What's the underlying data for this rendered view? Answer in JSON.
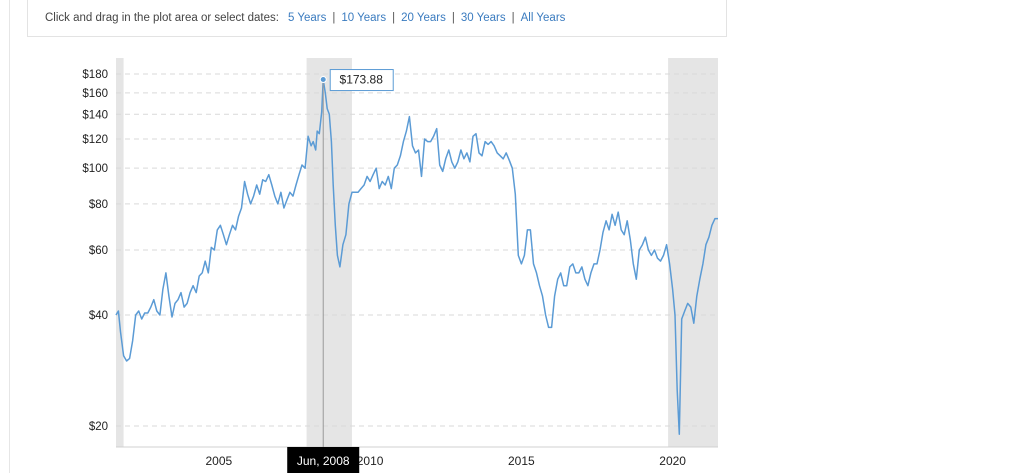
{
  "toolbar": {
    "prompt": "Click and drag in the plot area or select dates:",
    "ranges": [
      "5 Years",
      "10 Years",
      "20 Years",
      "30 Years",
      "All Years"
    ],
    "separator": "|"
  },
  "tooltip": {
    "value_label": "$173.88",
    "date_label": "Jun, 2008"
  },
  "colors": {
    "line": "#5b9bd5",
    "recession": "#e5e5e5",
    "grid": "#d9d9d9",
    "date_bg": "#000000"
  },
  "chart_data": {
    "type": "line",
    "y_scale": "log",
    "ylim": [
      20,
      180
    ],
    "xlim": [
      2001.6,
      2021.5
    ],
    "y_ticks": [
      {
        "v": 180,
        "label": "$180"
      },
      {
        "v": 160,
        "label": "$160"
      },
      {
        "v": 140,
        "label": "$140"
      },
      {
        "v": 120,
        "label": "$120"
      },
      {
        "v": 100,
        "label": "$100"
      },
      {
        "v": 80,
        "label": "$80"
      },
      {
        "v": 60,
        "label": "$60"
      },
      {
        "v": 40,
        "label": "$40"
      },
      {
        "v": 20,
        "label": "$20"
      }
    ],
    "x_ticks": [
      {
        "v": 2005,
        "label": "2005"
      },
      {
        "v": 2010,
        "label": "2010"
      },
      {
        "v": 2015,
        "label": "2015"
      },
      {
        "v": 2020,
        "label": "2020"
      }
    ],
    "highlight": {
      "x": 2008.45,
      "y": 173.88
    },
    "recessions": [
      [
        2001.6,
        2001.85
      ],
      [
        2007.9,
        2009.4
      ],
      [
        2019.85,
        2021.5
      ]
    ],
    "points": [
      [
        2001.6,
        40
      ],
      [
        2001.68,
        41
      ],
      [
        2001.75,
        36
      ],
      [
        2001.85,
        31
      ],
      [
        2001.95,
        30
      ],
      [
        2002.05,
        30.5
      ],
      [
        2002.15,
        34
      ],
      [
        2002.25,
        40
      ],
      [
        2002.35,
        41
      ],
      [
        2002.45,
        39
      ],
      [
        2002.55,
        40.5
      ],
      [
        2002.65,
        40.5
      ],
      [
        2002.75,
        42
      ],
      [
        2002.85,
        44
      ],
      [
        2002.95,
        41
      ],
      [
        2003.05,
        40
      ],
      [
        2003.15,
        47
      ],
      [
        2003.25,
        52
      ],
      [
        2003.35,
        45
      ],
      [
        2003.45,
        39.5
      ],
      [
        2003.55,
        43
      ],
      [
        2003.65,
        44
      ],
      [
        2003.75,
        46
      ],
      [
        2003.85,
        42
      ],
      [
        2003.95,
        43
      ],
      [
        2004.05,
        46
      ],
      [
        2004.15,
        48
      ],
      [
        2004.25,
        46
      ],
      [
        2004.35,
        51
      ],
      [
        2004.45,
        52
      ],
      [
        2004.55,
        56
      ],
      [
        2004.65,
        52
      ],
      [
        2004.75,
        61
      ],
      [
        2004.85,
        60
      ],
      [
        2004.95,
        68
      ],
      [
        2005.05,
        70
      ],
      [
        2005.15,
        66
      ],
      [
        2005.25,
        62
      ],
      [
        2005.35,
        66
      ],
      [
        2005.45,
        70
      ],
      [
        2005.55,
        68
      ],
      [
        2005.65,
        74
      ],
      [
        2005.75,
        78
      ],
      [
        2005.85,
        92
      ],
      [
        2005.95,
        85
      ],
      [
        2006.05,
        80
      ],
      [
        2006.15,
        84
      ],
      [
        2006.25,
        90
      ],
      [
        2006.35,
        85
      ],
      [
        2006.45,
        93
      ],
      [
        2006.55,
        92
      ],
      [
        2006.65,
        96
      ],
      [
        2006.75,
        90
      ],
      [
        2006.85,
        84
      ],
      [
        2006.95,
        80
      ],
      [
        2007.05,
        86
      ],
      [
        2007.15,
        78
      ],
      [
        2007.25,
        82
      ],
      [
        2007.35,
        86
      ],
      [
        2007.45,
        84
      ],
      [
        2007.55,
        90
      ],
      [
        2007.65,
        96
      ],
      [
        2007.75,
        102
      ],
      [
        2007.85,
        100
      ],
      [
        2007.95,
        122
      ],
      [
        2008.05,
        115
      ],
      [
        2008.12,
        118
      ],
      [
        2008.2,
        112
      ],
      [
        2008.25,
        126
      ],
      [
        2008.32,
        124
      ],
      [
        2008.4,
        142
      ],
      [
        2008.45,
        173.88
      ],
      [
        2008.52,
        160
      ],
      [
        2008.58,
        145
      ],
      [
        2008.65,
        140
      ],
      [
        2008.72,
        118
      ],
      [
        2008.78,
        90
      ],
      [
        2008.85,
        70
      ],
      [
        2008.92,
        58
      ],
      [
        2009.0,
        54
      ],
      [
        2009.1,
        62
      ],
      [
        2009.2,
        66
      ],
      [
        2009.3,
        80
      ],
      [
        2009.4,
        86
      ],
      [
        2009.5,
        86
      ],
      [
        2009.6,
        86
      ],
      [
        2009.7,
        88
      ],
      [
        2009.8,
        90
      ],
      [
        2009.9,
        95
      ],
      [
        2010.0,
        92
      ],
      [
        2010.1,
        96
      ],
      [
        2010.2,
        100
      ],
      [
        2010.3,
        88
      ],
      [
        2010.4,
        92
      ],
      [
        2010.5,
        90
      ],
      [
        2010.6,
        95
      ],
      [
        2010.7,
        88
      ],
      [
        2010.8,
        100
      ],
      [
        2010.9,
        102
      ],
      [
        2011.0,
        108
      ],
      [
        2011.1,
        118
      ],
      [
        2011.2,
        126
      ],
      [
        2011.3,
        138
      ],
      [
        2011.4,
        115
      ],
      [
        2011.5,
        110
      ],
      [
        2011.6,
        112
      ],
      [
        2011.7,
        95
      ],
      [
        2011.8,
        120
      ],
      [
        2011.9,
        118
      ],
      [
        2012.0,
        118
      ],
      [
        2012.1,
        122
      ],
      [
        2012.2,
        128
      ],
      [
        2012.3,
        102
      ],
      [
        2012.4,
        98
      ],
      [
        2012.5,
        106
      ],
      [
        2012.6,
        112
      ],
      [
        2012.7,
        104
      ],
      [
        2012.8,
        100
      ],
      [
        2012.9,
        104
      ],
      [
        2013.0,
        112
      ],
      [
        2013.1,
        106
      ],
      [
        2013.2,
        110
      ],
      [
        2013.3,
        104
      ],
      [
        2013.4,
        122
      ],
      [
        2013.5,
        124
      ],
      [
        2013.6,
        110
      ],
      [
        2013.7,
        108
      ],
      [
        2013.8,
        118
      ],
      [
        2013.9,
        116
      ],
      [
        2014.0,
        118
      ],
      [
        2014.1,
        115
      ],
      [
        2014.2,
        110
      ],
      [
        2014.3,
        108
      ],
      [
        2014.4,
        106
      ],
      [
        2014.5,
        110
      ],
      [
        2014.6,
        105
      ],
      [
        2014.7,
        100
      ],
      [
        2014.8,
        85
      ],
      [
        2014.9,
        58
      ],
      [
        2015.0,
        55
      ],
      [
        2015.1,
        58
      ],
      [
        2015.2,
        68
      ],
      [
        2015.3,
        68
      ],
      [
        2015.4,
        55
      ],
      [
        2015.5,
        52
      ],
      [
        2015.6,
        48
      ],
      [
        2015.7,
        45
      ],
      [
        2015.8,
        40
      ],
      [
        2015.9,
        37
      ],
      [
        2016.0,
        37
      ],
      [
        2016.1,
        45
      ],
      [
        2016.2,
        50
      ],
      [
        2016.3,
        52
      ],
      [
        2016.4,
        48
      ],
      [
        2016.5,
        48
      ],
      [
        2016.6,
        54
      ],
      [
        2016.7,
        55
      ],
      [
        2016.8,
        52
      ],
      [
        2016.9,
        52
      ],
      [
        2017.0,
        54
      ],
      [
        2017.1,
        50
      ],
      [
        2017.2,
        48
      ],
      [
        2017.3,
        52
      ],
      [
        2017.4,
        55
      ],
      [
        2017.5,
        55
      ],
      [
        2017.6,
        60
      ],
      [
        2017.7,
        67
      ],
      [
        2017.8,
        72
      ],
      [
        2017.9,
        68
      ],
      [
        2018.0,
        75
      ],
      [
        2018.1,
        70
      ],
      [
        2018.2,
        76
      ],
      [
        2018.3,
        68
      ],
      [
        2018.4,
        66
      ],
      [
        2018.5,
        72
      ],
      [
        2018.6,
        64
      ],
      [
        2018.7,
        55
      ],
      [
        2018.8,
        50
      ],
      [
        2018.9,
        60
      ],
      [
        2019.0,
        62
      ],
      [
        2019.1,
        65
      ],
      [
        2019.2,
        60
      ],
      [
        2019.3,
        58
      ],
      [
        2019.4,
        60
      ],
      [
        2019.5,
        57
      ],
      [
        2019.6,
        56
      ],
      [
        2019.7,
        58
      ],
      [
        2019.8,
        62
      ],
      [
        2019.9,
        55
      ],
      [
        2020.0,
        47
      ],
      [
        2020.08,
        40
      ],
      [
        2020.15,
        25
      ],
      [
        2020.22,
        19
      ],
      [
        2020.3,
        39
      ],
      [
        2020.4,
        41
      ],
      [
        2020.5,
        43
      ],
      [
        2020.6,
        42
      ],
      [
        2020.7,
        38
      ],
      [
        2020.8,
        45
      ],
      [
        2020.9,
        50
      ],
      [
        2021.0,
        55
      ],
      [
        2021.1,
        62
      ],
      [
        2021.2,
        65
      ],
      [
        2021.3,
        70
      ],
      [
        2021.4,
        73
      ],
      [
        2021.5,
        73
      ]
    ]
  }
}
